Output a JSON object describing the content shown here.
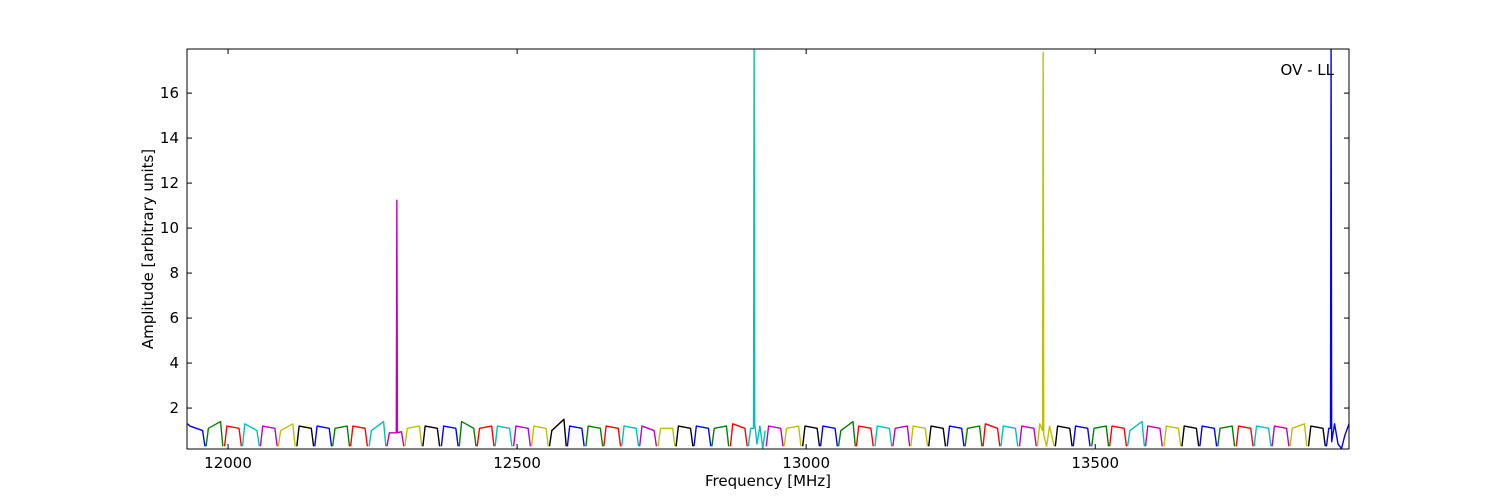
{
  "chart_data": {
    "type": "line",
    "xlabel": "Frequency [MHz]",
    "ylabel": "Amplitude [arbitrary units]",
    "annotation": "OV - LL",
    "xlim": [
      11929,
      13939
    ],
    "ylim": [
      0.18,
      17.96
    ],
    "xticks": [
      12000,
      12500,
      13000,
      13500
    ],
    "yticks": [
      2,
      4,
      6,
      8,
      10,
      12,
      14,
      16
    ],
    "grid": false,
    "series": [
      {
        "color": "#0000ff",
        "x": [
          11930,
          11934,
          11956,
          11960
        ],
        "values": [
          1.3,
          1.2,
          1.0,
          0.3
        ]
      },
      {
        "color": "#008000",
        "x": [
          11962,
          11966,
          11987,
          11991
        ],
        "values": [
          0.3,
          1.1,
          1.4,
          0.3
        ]
      },
      {
        "color": "#ff0000",
        "x": [
          11994,
          11998,
          12019,
          12023
        ],
        "values": [
          0.3,
          1.2,
          1.1,
          0.3
        ]
      },
      {
        "color": "#00bfbf",
        "x": [
          12025,
          12029,
          12050,
          12054
        ],
        "values": [
          0.3,
          1.3,
          1.0,
          0.3
        ]
      },
      {
        "color": "#bf00bf",
        "x": [
          12056,
          12060,
          12081,
          12085
        ],
        "values": [
          0.3,
          1.2,
          1.1,
          0.3
        ]
      },
      {
        "color": "#bfbf00",
        "x": [
          12087,
          12091,
          12112,
          12116
        ],
        "values": [
          0.3,
          1.0,
          1.3,
          0.3
        ]
      },
      {
        "color": "#000000",
        "x": [
          12119,
          12123,
          12144,
          12148
        ],
        "values": [
          0.3,
          1.2,
          1.1,
          0.3
        ]
      },
      {
        "color": "#0000ff",
        "x": [
          12150,
          12154,
          12175,
          12179
        ],
        "values": [
          0.3,
          1.2,
          1.1,
          0.3
        ]
      },
      {
        "color": "#008000",
        "x": [
          12181,
          12185,
          12206,
          12210
        ],
        "values": [
          0.3,
          1.1,
          1.2,
          0.3
        ]
      },
      {
        "color": "#ff0000",
        "x": [
          12212,
          12216,
          12237,
          12241
        ],
        "values": [
          0.3,
          1.2,
          1.1,
          0.3
        ]
      },
      {
        "color": "#00bfbf",
        "x": [
          12244,
          12248,
          12269,
          12273
        ],
        "values": [
          0.3,
          1.0,
          1.4,
          0.3
        ]
      },
      {
        "color": "#bf00bf",
        "x": [
          12275,
          12279,
          12291,
          12292,
          12293,
          12300,
          12304
        ],
        "values": [
          0.3,
          0.9,
          0.9,
          11.24,
          0.9,
          0.95,
          0.3
        ]
      },
      {
        "color": "#bfbf00",
        "x": [
          12306,
          12310,
          12331,
          12335
        ],
        "values": [
          0.3,
          1.1,
          1.2,
          0.3
        ]
      },
      {
        "color": "#000000",
        "x": [
          12337,
          12341,
          12362,
          12366
        ],
        "values": [
          0.3,
          1.2,
          1.1,
          0.3
        ]
      },
      {
        "color": "#0000ff",
        "x": [
          12369,
          12373,
          12394,
          12398
        ],
        "values": [
          0.3,
          1.2,
          1.1,
          0.3
        ]
      },
      {
        "color": "#008000",
        "x": [
          12400,
          12404,
          12425,
          12429
        ],
        "values": [
          0.3,
          1.4,
          1.1,
          0.3
        ]
      },
      {
        "color": "#ff0000",
        "x": [
          12431,
          12435,
          12456,
          12460
        ],
        "values": [
          0.3,
          1.1,
          1.2,
          0.3
        ]
      },
      {
        "color": "#00bfbf",
        "x": [
          12462,
          12466,
          12487,
          12491
        ],
        "values": [
          0.3,
          1.2,
          1.1,
          0.3
        ]
      },
      {
        "color": "#bf00bf",
        "x": [
          12494,
          12498,
          12519,
          12523
        ],
        "values": [
          0.3,
          1.2,
          1.1,
          0.3
        ]
      },
      {
        "color": "#bfbf00",
        "x": [
          12525,
          12529,
          12550,
          12554
        ],
        "values": [
          0.3,
          1.2,
          1.1,
          0.3
        ]
      },
      {
        "color": "#000000",
        "x": [
          12556,
          12560,
          12581,
          12585
        ],
        "values": [
          0.3,
          1.0,
          1.5,
          0.3
        ]
      },
      {
        "color": "#0000ff",
        "x": [
          12587,
          12591,
          12612,
          12616
        ],
        "values": [
          0.3,
          1.2,
          1.1,
          0.3
        ]
      },
      {
        "color": "#008000",
        "x": [
          12619,
          12623,
          12644,
          12648
        ],
        "values": [
          0.3,
          1.2,
          1.1,
          0.3
        ]
      },
      {
        "color": "#ff0000",
        "x": [
          12650,
          12654,
          12675,
          12679
        ],
        "values": [
          0.3,
          1.2,
          1.1,
          0.3
        ]
      },
      {
        "color": "#00bfbf",
        "x": [
          12681,
          12685,
          12706,
          12710
        ],
        "values": [
          0.3,
          1.2,
          1.1,
          0.3
        ]
      },
      {
        "color": "#bf00bf",
        "x": [
          12712,
          12716,
          12737,
          12741
        ],
        "values": [
          0.3,
          1.2,
          1.0,
          0.3
        ]
      },
      {
        "color": "#bfbf00",
        "x": [
          12744,
          12748,
          12769,
          12773
        ],
        "values": [
          0.3,
          1.1,
          1.1,
          0.3
        ]
      },
      {
        "color": "#000000",
        "x": [
          12775,
          12779,
          12800,
          12804
        ],
        "values": [
          0.3,
          1.2,
          1.1,
          0.3
        ]
      },
      {
        "color": "#0000ff",
        "x": [
          12806,
          12810,
          12831,
          12835
        ],
        "values": [
          0.3,
          1.2,
          1.1,
          0.3
        ]
      },
      {
        "color": "#008000",
        "x": [
          12837,
          12841,
          12862,
          12866
        ],
        "values": [
          0.3,
          1.1,
          1.2,
          0.3
        ]
      },
      {
        "color": "#ff0000",
        "x": [
          12869,
          12873,
          12894,
          12898
        ],
        "values": [
          0.3,
          1.3,
          1.1,
          0.3
        ]
      },
      {
        "color": "#00bfbf",
        "x": [
          12900,
          12904,
          12909,
          12910,
          12911,
          12915,
          12920,
          12925,
          12929
        ],
        "values": [
          0.3,
          1.1,
          1.1,
          18,
          1.3,
          0.4,
          1.2,
          0.2,
          1.0
        ]
      },
      {
        "color": "#bf00bf",
        "x": [
          12931,
          12935,
          12956,
          12960
        ],
        "values": [
          0.3,
          1.2,
          1.1,
          0.3
        ]
      },
      {
        "color": "#bfbf00",
        "x": [
          12962,
          12966,
          12987,
          12991
        ],
        "values": [
          0.3,
          1.1,
          1.2,
          0.3
        ]
      },
      {
        "color": "#000000",
        "x": [
          12994,
          12998,
          13019,
          13023
        ],
        "values": [
          0.3,
          1.2,
          1.1,
          0.3
        ]
      },
      {
        "color": "#0000ff",
        "x": [
          13025,
          13029,
          13050,
          13054
        ],
        "values": [
          0.3,
          1.2,
          1.1,
          0.3
        ]
      },
      {
        "color": "#008000",
        "x": [
          13056,
          13060,
          13081,
          13085
        ],
        "values": [
          0.3,
          1.0,
          1.4,
          0.3
        ]
      },
      {
        "color": "#ff0000",
        "x": [
          13087,
          13091,
          13112,
          13116
        ],
        "values": [
          0.3,
          1.2,
          1.1,
          0.3
        ]
      },
      {
        "color": "#00bfbf",
        "x": [
          13119,
          13123,
          13144,
          13148
        ],
        "values": [
          0.3,
          1.2,
          1.1,
          0.3
        ]
      },
      {
        "color": "#bf00bf",
        "x": [
          13150,
          13154,
          13175,
          13179
        ],
        "values": [
          0.3,
          1.1,
          1.2,
          0.3
        ]
      },
      {
        "color": "#bfbf00",
        "x": [
          13181,
          13185,
          13206,
          13210
        ],
        "values": [
          0.3,
          1.2,
          1.1,
          0.3
        ]
      },
      {
        "color": "#000000",
        "x": [
          13212,
          13216,
          13237,
          13241
        ],
        "values": [
          0.3,
          1.2,
          1.1,
          0.3
        ]
      },
      {
        "color": "#0000ff",
        "x": [
          13244,
          13248,
          13269,
          13273
        ],
        "values": [
          0.3,
          1.2,
          1.1,
          0.3
        ]
      },
      {
        "color": "#008000",
        "x": [
          13275,
          13279,
          13300,
          13304
        ],
        "values": [
          0.3,
          1.1,
          1.2,
          0.3
        ]
      },
      {
        "color": "#ff0000",
        "x": [
          13306,
          13310,
          13331,
          13335
        ],
        "values": [
          0.3,
          1.3,
          1.1,
          0.3
        ]
      },
      {
        "color": "#00bfbf",
        "x": [
          13337,
          13341,
          13362,
          13366
        ],
        "values": [
          0.3,
          1.2,
          1.1,
          0.3
        ]
      },
      {
        "color": "#bf00bf",
        "x": [
          13369,
          13373,
          13394,
          13398
        ],
        "values": [
          0.3,
          1.2,
          1.1,
          0.3
        ]
      },
      {
        "color": "#bfbf00",
        "x": [
          13400,
          13404,
          13409,
          13410,
          13411,
          13416,
          13421,
          13429
        ],
        "values": [
          0.3,
          1.3,
          1.0,
          17.8,
          0.8,
          0.3,
          1.2,
          0.3
        ]
      },
      {
        "color": "#000000",
        "x": [
          13431,
          13435,
          13456,
          13460
        ],
        "values": [
          0.3,
          1.2,
          1.1,
          0.3
        ]
      },
      {
        "color": "#0000ff",
        "x": [
          13462,
          13466,
          13487,
          13491
        ],
        "values": [
          0.3,
          1.2,
          1.1,
          0.3
        ]
      },
      {
        "color": "#008000",
        "x": [
          13494,
          13498,
          13519,
          13523
        ],
        "values": [
          0.3,
          1.1,
          1.2,
          0.3
        ]
      },
      {
        "color": "#ff0000",
        "x": [
          13525,
          13529,
          13550,
          13554
        ],
        "values": [
          0.3,
          1.2,
          1.1,
          0.3
        ]
      },
      {
        "color": "#00bfbf",
        "x": [
          13556,
          13560,
          13581,
          13585
        ],
        "values": [
          0.3,
          1.0,
          1.4,
          0.3
        ]
      },
      {
        "color": "#bf00bf",
        "x": [
          13587,
          13591,
          13612,
          13616
        ],
        "values": [
          0.3,
          1.2,
          1.1,
          0.3
        ]
      },
      {
        "color": "#bfbf00",
        "x": [
          13619,
          13623,
          13644,
          13648
        ],
        "values": [
          0.3,
          1.2,
          1.1,
          0.3
        ]
      },
      {
        "color": "#000000",
        "x": [
          13650,
          13654,
          13675,
          13679
        ],
        "values": [
          0.3,
          1.2,
          1.1,
          0.3
        ]
      },
      {
        "color": "#0000ff",
        "x": [
          13681,
          13685,
          13706,
          13710
        ],
        "values": [
          0.3,
          1.2,
          1.1,
          0.3
        ]
      },
      {
        "color": "#008000",
        "x": [
          13712,
          13716,
          13737,
          13741
        ],
        "values": [
          0.3,
          1.1,
          1.2,
          0.3
        ]
      },
      {
        "color": "#ff0000",
        "x": [
          13744,
          13748,
          13769,
          13773
        ],
        "values": [
          0.3,
          1.2,
          1.1,
          0.3
        ]
      },
      {
        "color": "#00bfbf",
        "x": [
          13775,
          13779,
          13800,
          13804
        ],
        "values": [
          0.3,
          1.2,
          1.1,
          0.3
        ]
      },
      {
        "color": "#bf00bf",
        "x": [
          13806,
          13810,
          13831,
          13835
        ],
        "values": [
          0.3,
          1.2,
          1.1,
          0.3
        ]
      },
      {
        "color": "#bfbf00",
        "x": [
          13837,
          13841,
          13862,
          13866
        ],
        "values": [
          0.3,
          1.1,
          1.3,
          0.3
        ]
      },
      {
        "color": "#000000",
        "x": [
          13869,
          13873,
          13894,
          13898
        ],
        "values": [
          0.3,
          1.2,
          1.1,
          0.3
        ]
      },
      {
        "color": "#0000ff",
        "x": [
          13900,
          13904,
          13907,
          13908,
          13909,
          13914,
          13920,
          13926,
          13932,
          13939
        ],
        "values": [
          0.3,
          1.1,
          1.1,
          18,
          0.5,
          1.3,
          0.4,
          0.2,
          0.8,
          1.3
        ]
      }
    ]
  }
}
